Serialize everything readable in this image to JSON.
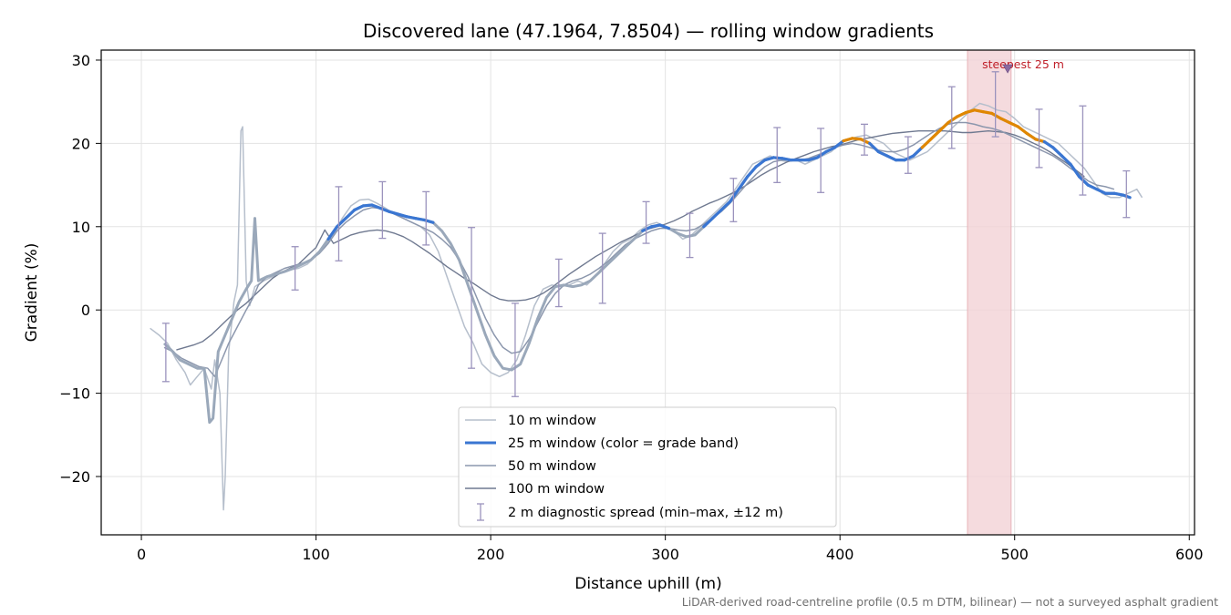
{
  "chart_data": {
    "type": "line",
    "title": "Discovered lane (47.1964, 7.8504) — rolling window gradients",
    "xlabel": "Distance uphill (m)",
    "ylabel": "Gradient (%)",
    "xlim": [
      -23,
      603
    ],
    "ylim": [
      -27,
      31.2
    ],
    "x_ticks": [
      0,
      100,
      200,
      300,
      400,
      500,
      600
    ],
    "y_ticks": [
      -20,
      -10,
      0,
      10,
      20,
      30
    ],
    "grid": true,
    "legend_position": "lower-center",
    "footnote": "LiDAR-derived road-centreline profile (0.5 m DTM, bilinear) — not a surveyed asphalt gradient",
    "colors": {
      "w10": "#b6bfcc",
      "w25_band_low": "#3a76d2",
      "w25_band_high": "#e08700",
      "w25_muted": "#9aa8ba",
      "w50": "#8c97ad",
      "w100": "#6f7990",
      "errorbar": "#9b93bd",
      "highlight": "#f2d2d6",
      "annotation": "#c0202a"
    },
    "highlight": {
      "x0": 473,
      "x1": 498,
      "label": "steepest 25 m",
      "marker": {
        "x": 496,
        "y": 28.9
      }
    },
    "series": [
      {
        "name": "10 m window",
        "x": [
          5,
          10,
          15,
          20,
          25,
          28,
          32,
          36,
          40,
          42,
          45,
          47,
          48,
          50,
          53,
          55,
          57,
          58,
          60,
          62,
          65,
          70,
          75,
          80,
          85,
          90,
          95,
          100,
          105,
          110,
          115,
          120,
          125,
          130,
          135,
          140,
          145,
          150,
          155,
          160,
          165,
          170,
          175,
          180,
          185,
          190,
          195,
          200,
          205,
          210,
          215,
          220,
          225,
          230,
          235,
          240,
          245,
          250,
          255,
          260,
          265,
          270,
          275,
          280,
          285,
          290,
          295,
          300,
          305,
          310,
          315,
          320,
          325,
          330,
          335,
          340,
          345,
          350,
          355,
          360,
          365,
          370,
          375,
          380,
          385,
          390,
          395,
          400,
          405,
          410,
          415,
          420,
          425,
          430,
          435,
          440,
          445,
          450,
          455,
          460,
          465,
          470,
          475,
          480,
          485,
          490,
          495,
          500,
          505,
          510,
          515,
          520,
          525,
          530,
          535,
          540,
          545,
          550,
          555,
          560,
          565,
          570,
          573
        ],
        "y": [
          -2.2,
          -3.0,
          -4.0,
          -6.0,
          -7.5,
          -9.0,
          -8.0,
          -7.0,
          -9.5,
          -6.0,
          -10.0,
          -24.0,
          -20.0,
          -5.0,
          1.0,
          3.0,
          21.5,
          22.0,
          3.5,
          0.5,
          2.8,
          3.5,
          4.0,
          4.5,
          4.8,
          5.0,
          5.5,
          6.5,
          7.5,
          9.0,
          11.0,
          12.5,
          13.2,
          13.3,
          12.8,
          12.2,
          11.5,
          11.0,
          10.5,
          10.0,
          9.0,
          7.0,
          4.0,
          1.0,
          -2.0,
          -4.0,
          -6.5,
          -7.5,
          -8.0,
          -7.5,
          -6.0,
          -3.0,
          0.5,
          2.5,
          3.0,
          2.8,
          3.0,
          3.5,
          3.0,
          4.0,
          5.5,
          7.0,
          8.0,
          8.5,
          9.5,
          10.2,
          10.5,
          10.0,
          9.5,
          8.5,
          9.0,
          10.0,
          11.0,
          12.0,
          13.0,
          14.5,
          16.0,
          17.5,
          18.0,
          18.5,
          18.0,
          17.8,
          18.0,
          17.5,
          18.0,
          18.5,
          19.0,
          20.0,
          20.5,
          20.8,
          21.0,
          20.5,
          20.0,
          19.0,
          18.5,
          18.0,
          18.5,
          19.0,
          20.0,
          21.0,
          22.0,
          23.0,
          24.0,
          24.8,
          24.5,
          24.0,
          23.8,
          23.0,
          22.0,
          21.5,
          21.0,
          20.5,
          20.0,
          19.0,
          18.0,
          17.0,
          15.5,
          14.0,
          13.5,
          13.5,
          14.0,
          14.5,
          13.5
        ]
      },
      {
        "name": "25 m window (color = grade band)",
        "x": [
          13,
          18,
          22,
          27,
          32,
          36,
          39,
          41,
          44,
          48,
          52,
          56,
          60,
          63,
          65,
          67,
          72,
          77,
          82,
          87,
          92,
          97,
          102,
          107,
          112,
          117,
          122,
          127,
          132,
          137,
          142,
          147,
          152,
          157,
          162,
          167,
          172,
          177,
          182,
          187,
          192,
          197,
          202,
          207,
          212,
          217,
          222,
          227,
          232,
          237,
          242,
          247,
          252,
          257,
          262,
          267,
          272,
          277,
          282,
          287,
          292,
          297,
          302,
          307,
          312,
          317,
          322,
          327,
          332,
          337,
          342,
          347,
          352,
          357,
          362,
          367,
          372,
          377,
          382,
          387,
          392,
          397,
          402,
          407,
          412,
          417,
          422,
          427,
          432,
          437,
          442,
          447,
          452,
          457,
          462,
          467,
          472,
          477,
          482,
          487,
          492,
          497,
          502,
          507,
          512,
          517,
          522,
          527,
          532,
          537,
          542,
          547,
          552,
          557,
          562,
          566
        ],
        "y": [
          -4.0,
          -5.0,
          -6.0,
          -6.5,
          -7.0,
          -7.0,
          -13.5,
          -13.0,
          -5.0,
          -3.0,
          -1.0,
          1.0,
          2.5,
          3.5,
          11.0,
          3.5,
          4.0,
          4.3,
          4.6,
          5.0,
          5.5,
          6.0,
          7.0,
          8.5,
          10.0,
          11.0,
          12.0,
          12.5,
          12.6,
          12.2,
          11.8,
          11.5,
          11.2,
          11.0,
          10.8,
          10.5,
          9.5,
          8.0,
          6.0,
          3.0,
          0.0,
          -3.0,
          -5.5,
          -7.0,
          -7.2,
          -6.5,
          -4.0,
          -1.0,
          1.5,
          2.8,
          3.0,
          2.8,
          3.0,
          3.5,
          4.5,
          5.5,
          6.5,
          7.5,
          8.5,
          9.5,
          10.0,
          10.2,
          9.8,
          9.2,
          8.8,
          9.0,
          10.0,
          11.0,
          12.0,
          13.0,
          14.5,
          16.0,
          17.2,
          18.0,
          18.3,
          18.2,
          18.0,
          18.0,
          18.0,
          18.3,
          19.0,
          19.5,
          20.3,
          20.6,
          20.5,
          20.0,
          19.0,
          18.5,
          18.0,
          18.0,
          18.5,
          19.5,
          20.5,
          21.5,
          22.5,
          23.2,
          23.7,
          24.0,
          23.8,
          23.6,
          23.0,
          22.5,
          22.0,
          21.2,
          20.5,
          20.2,
          19.5,
          18.5,
          17.5,
          16.0,
          15.0,
          14.5,
          14.0,
          14.0,
          13.8,
          13.5
        ],
        "band_threshold_pct": 20
      },
      {
        "name": "50 m window",
        "x": [
          13,
          18,
          23,
          28,
          33,
          38,
          42,
          46,
          50,
          55,
          60,
          64,
          67,
          72,
          77,
          82,
          87,
          92,
          97,
          102,
          107,
          112,
          117,
          122,
          127,
          132,
          137,
          142,
          147,
          152,
          157,
          162,
          167,
          172,
          177,
          182,
          187,
          192,
          197,
          202,
          207,
          212,
          217,
          222,
          227,
          232,
          237,
          242,
          247,
          252,
          257,
          262,
          267,
          272,
          277,
          282,
          287,
          292,
          297,
          302,
          307,
          312,
          317,
          322,
          327,
          332,
          337,
          342,
          347,
          352,
          357,
          362,
          367,
          372,
          377,
          382,
          387,
          392,
          397,
          402,
          407,
          412,
          417,
          422,
          427,
          432,
          437,
          442,
          447,
          452,
          457,
          462,
          467,
          472,
          477,
          482,
          487,
          492,
          497,
          502,
          507,
          512,
          517,
          522,
          527,
          532,
          537,
          542,
          547,
          552,
          557
        ],
        "y": [
          -4.5,
          -5.0,
          -5.8,
          -6.3,
          -6.8,
          -7.0,
          -8.0,
          -6.0,
          -4.0,
          -2.0,
          0.0,
          1.5,
          3.0,
          4.0,
          4.5,
          5.0,
          5.3,
          5.6,
          6.0,
          6.8,
          8.0,
          9.5,
          10.5,
          11.3,
          12.0,
          12.3,
          12.2,
          11.8,
          11.3,
          10.8,
          10.3,
          9.8,
          9.3,
          8.5,
          7.5,
          6.0,
          4.0,
          1.5,
          -1.0,
          -3.0,
          -4.5,
          -5.2,
          -5.0,
          -3.5,
          -1.5,
          0.5,
          2.0,
          3.0,
          3.5,
          3.8,
          4.3,
          5.0,
          5.8,
          6.8,
          7.8,
          8.5,
          9.0,
          9.5,
          9.8,
          9.8,
          9.6,
          9.5,
          9.7,
          10.3,
          11.0,
          11.8,
          12.8,
          14.0,
          15.2,
          16.3,
          17.2,
          17.8,
          18.0,
          18.0,
          18.0,
          18.2,
          18.6,
          19.0,
          19.5,
          19.8,
          20.0,
          19.8,
          19.5,
          19.2,
          19.0,
          19.0,
          19.3,
          19.8,
          20.5,
          21.2,
          21.8,
          22.3,
          22.5,
          22.5,
          22.3,
          22.0,
          21.8,
          21.5,
          21.0,
          20.5,
          20.0,
          19.5,
          19.0,
          18.5,
          17.8,
          17.0,
          16.3,
          15.5,
          15.0,
          14.8,
          14.5
        ]
      },
      {
        "name": "100 m window",
        "x": [
          20,
          25,
          30,
          35,
          40,
          45,
          50,
          55,
          60,
          65,
          70,
          75,
          80,
          85,
          90,
          95,
          100,
          105,
          110,
          115,
          120,
          125,
          130,
          135,
          140,
          145,
          150,
          155,
          160,
          165,
          170,
          175,
          180,
          185,
          190,
          195,
          200,
          205,
          210,
          215,
          220,
          225,
          230,
          235,
          240,
          245,
          250,
          255,
          260,
          265,
          270,
          275,
          280,
          285,
          290,
          295,
          300,
          305,
          310,
          315,
          320,
          325,
          330,
          335,
          340,
          345,
          350,
          355,
          360,
          365,
          370,
          375,
          380,
          385,
          390,
          395,
          400,
          405,
          410,
          415,
          420,
          425,
          430,
          435,
          440,
          445,
          450,
          455,
          460,
          465,
          470,
          475,
          480,
          485,
          490,
          495,
          500,
          505,
          510,
          515,
          520,
          525,
          530,
          535,
          540
        ],
        "y": [
          -4.8,
          -4.5,
          -4.2,
          -3.8,
          -3.0,
          -2.0,
          -1.0,
          0.0,
          0.8,
          1.8,
          2.8,
          3.8,
          4.5,
          5.0,
          5.5,
          6.5,
          7.5,
          9.6,
          8.0,
          8.5,
          9.0,
          9.3,
          9.5,
          9.6,
          9.5,
          9.2,
          8.8,
          8.2,
          7.5,
          6.8,
          6.0,
          5.2,
          4.5,
          3.8,
          3.2,
          2.5,
          1.8,
          1.3,
          1.1,
          1.1,
          1.2,
          1.5,
          2.0,
          2.7,
          3.5,
          4.3,
          5.0,
          5.7,
          6.4,
          7.0,
          7.6,
          8.2,
          8.7,
          9.2,
          9.7,
          10.0,
          10.3,
          10.7,
          11.2,
          11.8,
          12.3,
          12.8,
          13.2,
          13.7,
          14.2,
          14.8,
          15.5,
          16.2,
          16.8,
          17.3,
          17.8,
          18.2,
          18.6,
          19.0,
          19.3,
          19.6,
          19.8,
          20.1,
          20.4,
          20.6,
          20.8,
          21.0,
          21.2,
          21.3,
          21.4,
          21.5,
          21.5,
          21.5,
          21.5,
          21.4,
          21.3,
          21.3,
          21.4,
          21.5,
          21.4,
          21.3,
          21.0,
          20.6,
          20.1,
          19.6,
          19.0,
          18.3,
          17.6,
          16.8,
          16.0
        ]
      }
    ],
    "errorbars": {
      "name": "2 m diagnostic spread (min–max, ±12 m)",
      "x": [
        14,
        88,
        113,
        138,
        163,
        189,
        214,
        239,
        264,
        289,
        314,
        339,
        364,
        389,
        414,
        439,
        464,
        489,
        514,
        539,
        564
      ],
      "low": [
        -8.6,
        2.4,
        5.9,
        8.6,
        7.8,
        -7.0,
        -10.4,
        0.4,
        0.8,
        8.0,
        6.3,
        10.6,
        15.3,
        14.1,
        18.6,
        16.4,
        19.4,
        20.8,
        17.1,
        13.8,
        11.1
      ],
      "high": [
        -1.6,
        7.6,
        14.8,
        15.4,
        14.2,
        9.9,
        0.8,
        6.1,
        9.2,
        13.0,
        11.6,
        15.8,
        21.9,
        21.8,
        22.3,
        20.8,
        26.8,
        28.6,
        24.1,
        24.5,
        16.7
      ]
    }
  }
}
